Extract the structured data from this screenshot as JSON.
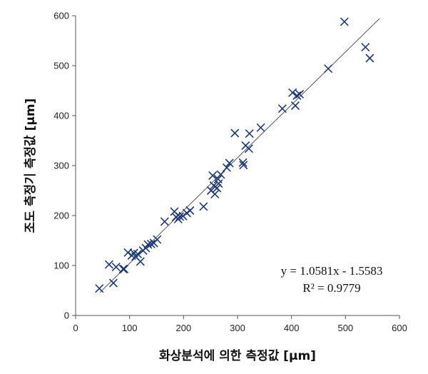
{
  "chart_data": {
    "type": "scatter",
    "title": "",
    "xlabel": "화상분석에 의한 측정값 [μm]",
    "ylabel": "조도 측정기 측정값 [μm]",
    "xlim": [
      0,
      600
    ],
    "ylim": [
      0,
      600
    ],
    "xticks": [
      "0",
      "100",
      "200",
      "300",
      "400",
      "500",
      "600"
    ],
    "yticks": [
      "0",
      "100",
      "200",
      "300",
      "400",
      "500",
      "600"
    ],
    "marker": "x",
    "marker_color": "#1f3a7a",
    "grid": false,
    "legend": "none",
    "trendline": {
      "slope": 1.0581,
      "intercept": -1.5583,
      "x_range": [
        45,
        563
      ]
    },
    "annotations": [
      "y = 1.0581x - 1.5583",
      "R² = 0.9779"
    ],
    "points": [
      [
        44,
        54
      ],
      [
        62,
        102
      ],
      [
        70,
        65
      ],
      [
        75,
        97
      ],
      [
        88,
        93
      ],
      [
        90,
        93
      ],
      [
        97,
        126
      ],
      [
        104,
        120
      ],
      [
        108,
        125
      ],
      [
        111,
        118
      ],
      [
        115,
        123
      ],
      [
        120,
        108
      ],
      [
        125,
        130
      ],
      [
        130,
        135
      ],
      [
        134,
        142
      ],
      [
        140,
        143
      ],
      [
        145,
        145
      ],
      [
        151,
        152
      ],
      [
        165,
        188
      ],
      [
        183,
        208
      ],
      [
        186,
        197
      ],
      [
        190,
        193
      ],
      [
        193,
        198
      ],
      [
        199,
        199
      ],
      [
        206,
        205
      ],
      [
        212,
        210
      ],
      [
        237,
        218
      ],
      [
        251,
        250
      ],
      [
        254,
        280
      ],
      [
        256,
        260
      ],
      [
        258,
        243
      ],
      [
        262,
        255
      ],
      [
        264,
        273
      ],
      [
        265,
        264
      ],
      [
        269,
        282
      ],
      [
        280,
        296
      ],
      [
        285,
        305
      ],
      [
        295,
        365
      ],
      [
        310,
        306
      ],
      [
        311,
        301
      ],
      [
        315,
        340
      ],
      [
        321,
        334
      ],
      [
        322,
        364
      ],
      [
        343,
        376
      ],
      [
        383,
        414
      ],
      [
        402,
        446
      ],
      [
        407,
        420
      ],
      [
        410,
        440
      ],
      [
        415,
        443
      ],
      [
        468,
        494
      ],
      [
        498,
        588
      ],
      [
        537,
        537
      ],
      [
        545,
        515
      ]
    ]
  }
}
